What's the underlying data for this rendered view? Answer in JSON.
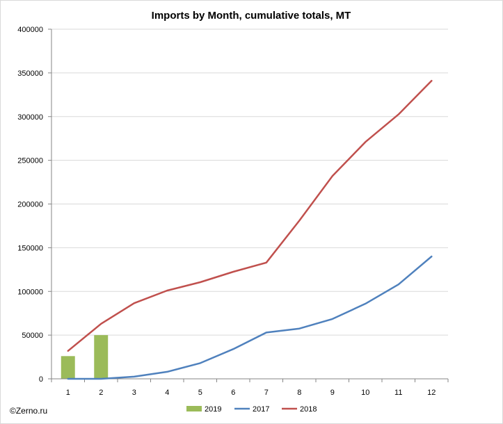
{
  "chart_data": {
    "type": "bar+line",
    "title": "Imports by Month, cumulative totals, MT",
    "xlabel": "",
    "ylabel": "",
    "x": [
      1,
      2,
      3,
      4,
      5,
      6,
      7,
      8,
      9,
      10,
      11,
      12
    ],
    "x_tick_labels": [
      "1",
      "2",
      "3",
      "4",
      "5",
      "6",
      "7",
      "8",
      "9",
      "10",
      "11",
      "12"
    ],
    "ylim": [
      0,
      400000
    ],
    "y_ticks": [
      0,
      50000,
      100000,
      150000,
      200000,
      250000,
      300000,
      350000,
      400000
    ],
    "y_tick_labels": [
      "0",
      "50000",
      "100000",
      "150000",
      "200000",
      "250000",
      "300000",
      "350000",
      "400000"
    ],
    "grid": "horizontal",
    "legend_position": "bottom",
    "series": [
      {
        "name": "2019",
        "kind": "bar",
        "color": "#9BBB59",
        "values": [
          26000,
          50000,
          null,
          null,
          null,
          null,
          null,
          null,
          null,
          null,
          null,
          null
        ]
      },
      {
        "name": "2017",
        "kind": "line",
        "color": "#4F81BD",
        "values": [
          0,
          0,
          2500,
          8000,
          18000,
          34000,
          53000,
          57500,
          68500,
          86000,
          108000,
          140000
        ]
      },
      {
        "name": "2018",
        "kind": "line",
        "color": "#C0504D",
        "values": [
          32000,
          63000,
          86500,
          101000,
          110500,
          122500,
          133000,
          181000,
          232000,
          271000,
          302500,
          341000
        ]
      }
    ]
  },
  "watermark": "©Zerno.ru"
}
